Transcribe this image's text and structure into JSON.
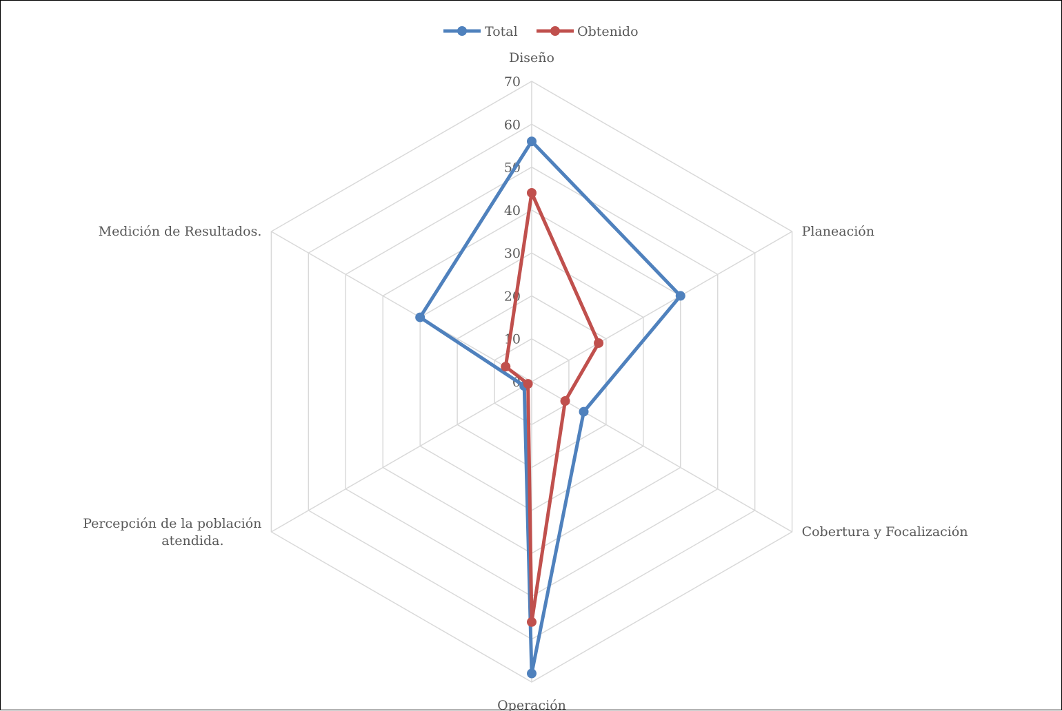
{
  "chart_data": {
    "type": "radar",
    "categories": [
      "Diseño",
      "Planeación",
      "Cobertura y Focalización",
      "Operación",
      [
        "Percepción de la población",
        "atendida."
      ],
      "Medición de Resultados."
    ],
    "series": [
      {
        "name": "Total",
        "color": "#4f81bd",
        "values": [
          56,
          40,
          14,
          68,
          2,
          30
        ]
      },
      {
        "name": "Obtenido",
        "color": "#c0504d",
        "values": [
          44,
          18,
          9,
          56,
          1,
          7
        ]
      }
    ],
    "rlim": [
      0,
      70
    ],
    "ticks": [
      0,
      10,
      20,
      30,
      40,
      50,
      60,
      70
    ],
    "legend_position": "top",
    "grid": true
  }
}
